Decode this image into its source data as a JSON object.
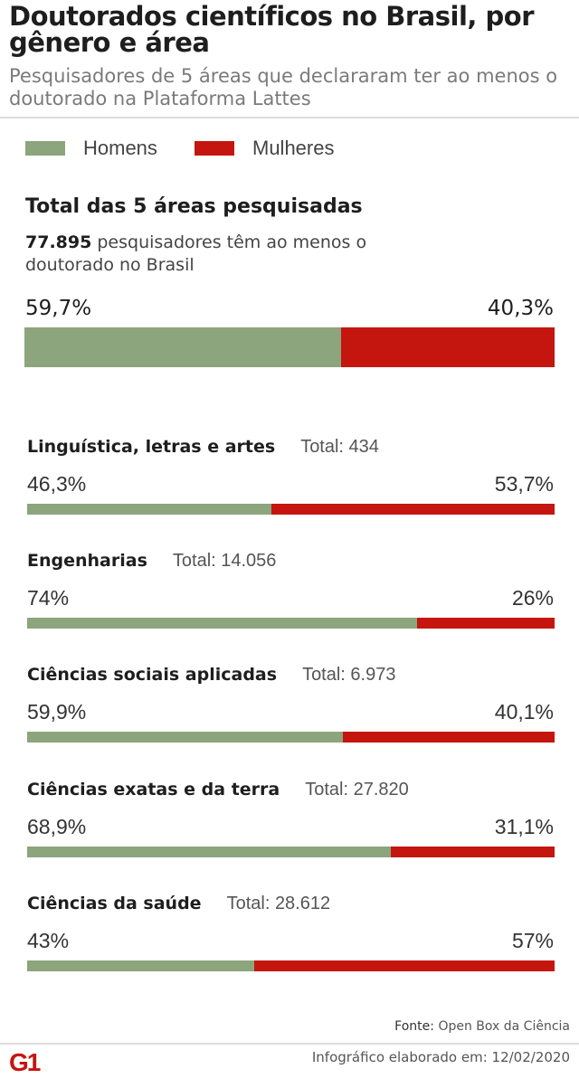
{
  "title": "Doutorados científicos no Brasil, por gênero e área",
  "subtitle": "Pesquisadores de 5 áreas que declararam ter ao menos o doutorado na Plataforma Lattes",
  "chart_data": {
    "type": "bar",
    "stacked": "100%",
    "legend": [
      {
        "name": "Homens",
        "color": "#8ca57c"
      },
      {
        "name": "Mulheres",
        "color": "#c4160f"
      }
    ],
    "legend_placement": "top-left",
    "total": {
      "heading": "Total das 5 áreas pesquisadas",
      "count": "77.895",
      "text": "pesquisadores têm ao menos o doutorado no Brasil",
      "homens": 59.7,
      "mulheres": 40.3,
      "homens_label": "59,7%",
      "mulheres_label": "40,3%"
    },
    "categories": [
      {
        "name": "Linguística, letras e artes",
        "total": "Total: 434",
        "homens": 46.3,
        "mulheres": 53.7,
        "homens_label": "46,3%",
        "mulheres_label": "53,7%"
      },
      {
        "name": "Engenharias",
        "total": "Total: 14.056",
        "homens": 74,
        "mulheres": 26,
        "homens_label": "74%",
        "mulheres_label": "26%"
      },
      {
        "name": "Ciências sociais aplicadas",
        "total": "Total: 6.973",
        "homens": 59.9,
        "mulheres": 40.1,
        "homens_label": "59,9%",
        "mulheres_label": "40,1%"
      },
      {
        "name": "Ciências exatas e da terra",
        "total": "Total: 27.820",
        "homens": 68.9,
        "mulheres": 31.1,
        "homens_label": "68,9%",
        "mulheres_label": "31,1%"
      },
      {
        "name": "Ciências da saúde",
        "total": "Total: 28.612",
        "homens": 43,
        "mulheres": 57,
        "homens_label": "43%",
        "mulheres_label": "57%"
      }
    ]
  },
  "footer": {
    "source_label": "Fonte:",
    "source": "Open Box da Ciência",
    "made": "Infográfico elaborado em: 12/02/2020",
    "logo": "G1"
  }
}
